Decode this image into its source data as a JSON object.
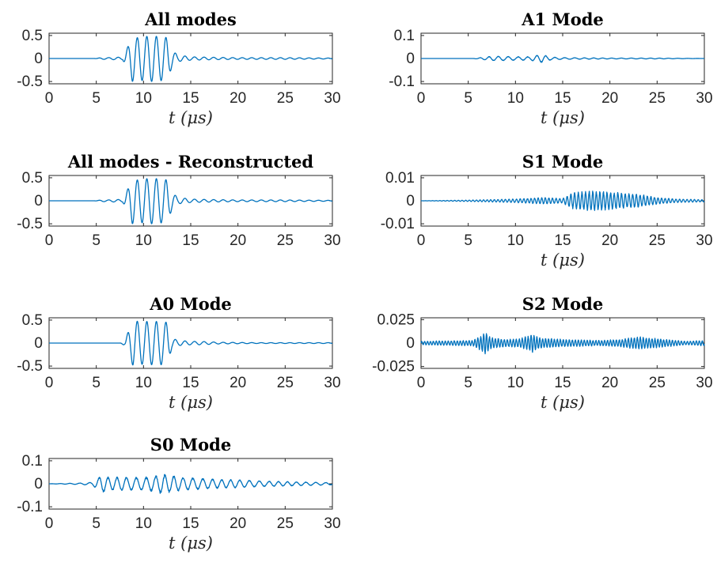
{
  "figure": {
    "line_color": "#0072BD",
    "axis_color": "#262626"
  },
  "chart_data": [
    {
      "type": "line",
      "title": "All modes",
      "xlabel": "t (μs)",
      "ylabel": "",
      "xlim": [
        0,
        30
      ],
      "ylim": [
        -0.55,
        0.55
      ],
      "xticks": [
        0,
        5,
        10,
        15,
        20,
        25,
        30
      ],
      "xtick_labels": [
        "0",
        "5",
        "10",
        "15",
        "20",
        "25",
        "30"
      ],
      "yticks": [
        0.5,
        0,
        -0.5
      ],
      "ytick_labels": [
        "0.5",
        "0",
        "-0.5"
      ],
      "series": [
        {
          "values": [
            [
              0,
              0
            ],
            [
              4.8,
              0
            ],
            [
              5.6,
              0.02
            ],
            [
              6.2,
              -0.02
            ],
            [
              7.0,
              0.03
            ],
            [
              7.8,
              -0.03
            ],
            [
              8.4,
              0.28
            ],
            [
              8.8,
              0.5
            ],
            [
              9.3,
              -0.45
            ],
            [
              9.9,
              0.48
            ],
            [
              10.4,
              -0.48
            ],
            [
              10.9,
              0.5
            ],
            [
              11.4,
              -0.48
            ],
            [
              12.0,
              0.48
            ],
            [
              12.5,
              -0.45
            ],
            [
              13.0,
              0.2
            ],
            [
              13.7,
              0.07
            ],
            [
              14.4,
              -0.06
            ],
            [
              15.0,
              0.04
            ],
            [
              17,
              -0.03
            ],
            [
              20,
              0.02
            ],
            [
              25,
              0.02
            ],
            [
              30,
              0.01
            ]
          ]
        }
      ]
    },
    {
      "type": "line",
      "title": "A1 Mode",
      "xlabel": "t (μs)",
      "ylabel": "",
      "xlim": [
        0,
        30
      ],
      "ylim": [
        -0.11,
        0.11
      ],
      "xticks": [
        0,
        5,
        10,
        15,
        20,
        25,
        30
      ],
      "xtick_labels": [
        "0",
        "5",
        "10",
        "15",
        "20",
        "25",
        "30"
      ],
      "yticks": [
        0.1,
        0,
        -0.1
      ],
      "ytick_labels": [
        "0.1",
        "0",
        "-0.1"
      ],
      "series": [
        {
          "values": [
            [
              0,
              0
            ],
            [
              5.5,
              0
            ],
            [
              6.5,
              0.005
            ],
            [
              7.5,
              0.01
            ],
            [
              8.5,
              -0.01
            ],
            [
              10,
              0.008
            ],
            [
              11.5,
              -0.008
            ],
            [
              12.8,
              0.018
            ],
            [
              13.8,
              -0.006
            ],
            [
              15,
              0.004
            ],
            [
              20,
              0.002
            ],
            [
              25,
              0.002
            ],
            [
              30,
              0.0
            ]
          ]
        }
      ]
    },
    {
      "type": "line",
      "title": "All modes - Reconstructed",
      "xlabel": "",
      "ylabel": "",
      "xlim": [
        0,
        30
      ],
      "ylim": [
        -0.55,
        0.55
      ],
      "xticks": [
        0,
        5,
        10,
        15,
        20,
        25,
        30
      ],
      "xtick_labels": [
        "0",
        "5",
        "10",
        "15",
        "20",
        "25",
        "30"
      ],
      "yticks": [
        0.5,
        0,
        -0.5
      ],
      "ytick_labels": [
        "0.5",
        "0",
        "-0.5"
      ],
      "series": [
        {
          "values": [
            [
              0,
              0
            ],
            [
              4.8,
              0
            ],
            [
              5.6,
              0.02
            ],
            [
              6.2,
              -0.02
            ],
            [
              7.0,
              0.03
            ],
            [
              7.8,
              -0.03
            ],
            [
              8.4,
              0.28
            ],
            [
              8.8,
              0.5
            ],
            [
              9.3,
              -0.45
            ],
            [
              9.9,
              0.48
            ],
            [
              10.4,
              -0.48
            ],
            [
              10.9,
              0.5
            ],
            [
              11.4,
              -0.48
            ],
            [
              12.0,
              0.48
            ],
            [
              12.5,
              -0.45
            ],
            [
              13.0,
              0.2
            ],
            [
              13.7,
              0.07
            ],
            [
              14.4,
              -0.06
            ],
            [
              15.0,
              0.04
            ],
            [
              17,
              -0.03
            ],
            [
              20,
              0.02
            ],
            [
              25,
              0.02
            ],
            [
              30,
              0.01
            ]
          ]
        }
      ]
    },
    {
      "type": "line",
      "title": "S1 Mode",
      "xlabel": "t (μs)",
      "ylabel": "",
      "xlim": [
        0,
        30
      ],
      "ylim": [
        -0.011,
        0.011
      ],
      "xticks": [
        0,
        5,
        10,
        15,
        20,
        25,
        30
      ],
      "xtick_labels": [
        "0",
        "5",
        "10",
        "15",
        "20",
        "25",
        "30"
      ],
      "yticks": [
        0.01,
        0,
        -0.01
      ],
      "ytick_labels": [
        "0.01",
        "0",
        "-0.01"
      ],
      "series": [
        {
          "values": [
            [
              0,
              0
            ],
            [
              5,
              0.0003
            ],
            [
              10,
              0.0008
            ],
            [
              13,
              0.0015
            ],
            [
              15,
              0.001
            ],
            [
              16,
              0.0035
            ],
            [
              18,
              0.0045
            ],
            [
              20,
              0.004
            ],
            [
              23,
              0.003
            ],
            [
              25,
              0.0015
            ],
            [
              27,
              0.0008
            ],
            [
              30,
              0.0005
            ]
          ]
        }
      ]
    },
    {
      "type": "line",
      "title": "A0 Mode",
      "xlabel": "t (μs)",
      "ylabel": "",
      "xlim": [
        0,
        30
      ],
      "ylim": [
        -0.55,
        0.55
      ],
      "xticks": [
        0,
        5,
        10,
        15,
        20,
        25,
        30
      ],
      "xtick_labels": [
        "0",
        "5",
        "10",
        "15",
        "20",
        "25",
        "30"
      ],
      "yticks": [
        0.5,
        0,
        -0.5
      ],
      "ytick_labels": [
        "0.5",
        "0",
        "-0.5"
      ],
      "series": [
        {
          "values": [
            [
              0,
              0
            ],
            [
              7.5,
              0
            ],
            [
              8.0,
              -0.05
            ],
            [
              8.5,
              0.3
            ],
            [
              8.9,
              0.5
            ],
            [
              9.4,
              -0.47
            ],
            [
              9.9,
              0.46
            ],
            [
              10.4,
              -0.47
            ],
            [
              10.9,
              0.47
            ],
            [
              11.4,
              -0.47
            ],
            [
              11.9,
              0.47
            ],
            [
              12.5,
              -0.45
            ],
            [
              13.0,
              0.12
            ],
            [
              13.7,
              0.06
            ],
            [
              14.5,
              -0.05
            ],
            [
              15,
              0.04
            ],
            [
              16,
              -0.04
            ],
            [
              18,
              0.02
            ],
            [
              22,
              0.01
            ],
            [
              30,
              0.01
            ]
          ]
        }
      ]
    },
    {
      "type": "line",
      "title": "S2 Mode",
      "xlabel": "t (μs)",
      "ylabel": "",
      "xlim": [
        0,
        30
      ],
      "ylim": [
        -0.027,
        0.027
      ],
      "xticks": [
        0,
        5,
        10,
        15,
        20,
        25,
        30
      ],
      "xtick_labels": [
        "0",
        "5",
        "10",
        "15",
        "20",
        "25",
        "30"
      ],
      "yticks": [
        0.025,
        0,
        -0.025
      ],
      "ytick_labels": [
        "0.025",
        "0",
        "-0.025"
      ],
      "series": [
        {
          "values": [
            [
              0,
              0.002
            ],
            [
              5.5,
              0.003
            ],
            [
              6.3,
              0.008
            ],
            [
              6.8,
              0.012
            ],
            [
              7.5,
              0.006
            ],
            [
              9,
              0.004
            ],
            [
              10.5,
              0.005
            ],
            [
              11.8,
              0.01
            ],
            [
              12.5,
              0.006
            ],
            [
              15,
              0.004
            ],
            [
              19,
              0.003
            ],
            [
              21,
              0.004
            ],
            [
              23,
              0.007
            ],
            [
              25,
              0.005
            ],
            [
              28,
              0.002
            ],
            [
              30,
              0.003
            ]
          ]
        }
      ]
    },
    {
      "type": "line",
      "title": "S0 Mode",
      "xlabel": "t (μs)",
      "ylabel": "",
      "xlim": [
        0,
        30
      ],
      "ylim": [
        -0.11,
        0.11
      ],
      "xticks": [
        0,
        5,
        10,
        15,
        20,
        25,
        30
      ],
      "xtick_labels": [
        "0",
        "5",
        "10",
        "15",
        "20",
        "25",
        "30"
      ],
      "yticks": [
        0.1,
        0,
        -0.1
      ],
      "ytick_labels": [
        "0.1",
        "0",
        "-0.1"
      ],
      "series": [
        {
          "values": [
            [
              0,
              0
            ],
            [
              3,
              0.003
            ],
            [
              4.5,
              0.006
            ],
            [
              5.3,
              0.03
            ],
            [
              5.7,
              -0.04
            ],
            [
              6.2,
              0.03
            ],
            [
              7.5,
              -0.03
            ],
            [
              9,
              0.03
            ],
            [
              10.5,
              -0.03
            ],
            [
              12,
              0.045
            ],
            [
              12.6,
              -0.04
            ],
            [
              14,
              0.03
            ],
            [
              16,
              0.025
            ],
            [
              18,
              0.02
            ],
            [
              20,
              0.018
            ],
            [
              23,
              0.012
            ],
            [
              27,
              0.008
            ],
            [
              30,
              0.005
            ]
          ]
        }
      ]
    }
  ]
}
